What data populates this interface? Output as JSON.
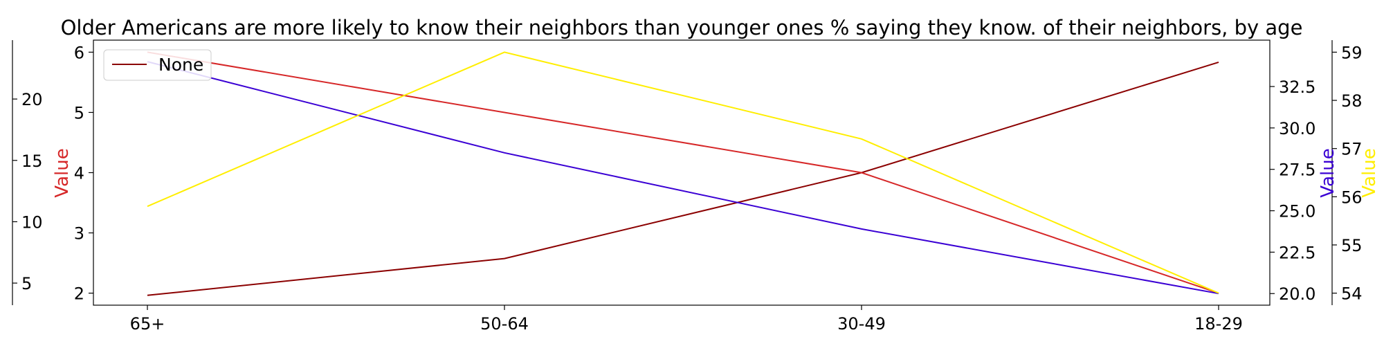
{
  "chart_data": {
    "type": "line",
    "title": "Older Americans are more likely to know their neighbors than younger ones % saying they know. of their neighbors, by age",
    "categories": [
      "65+",
      "50-64",
      "30-49",
      "18-29"
    ],
    "grid": false,
    "legend": {
      "placement": "top-left",
      "entries": [
        "None"
      ]
    },
    "axes": {
      "left": {
        "label": "Value",
        "color": "#d62728",
        "range": [
          1.8,
          6.2
        ],
        "ticks": [
          2,
          3,
          4,
          5,
          6
        ],
        "tick_labels": [
          "2",
          "3",
          "4",
          "5",
          "6"
        ]
      },
      "outer_left": {
        "label": "",
        "color": "#000000",
        "range": [
          3.2,
          24.8
        ],
        "ticks": [
          5,
          10,
          15,
          20
        ],
        "tick_labels": [
          "5",
          "10",
          "15",
          "20"
        ]
      },
      "right": {
        "label": "Value",
        "color": "#3a00d4",
        "range": [
          19.3,
          35.3
        ],
        "ticks": [
          20.0,
          22.5,
          25.0,
          27.5,
          30.0,
          32.5
        ],
        "tick_labels": [
          "20.0",
          "22.5",
          "25.0",
          "27.5",
          "30.0",
          "32.5"
        ]
      },
      "outer_right": {
        "label": "Value",
        "color": "#ffee00",
        "range": [
          53.75,
          59.25
        ],
        "ticks": [
          54,
          55,
          56,
          57,
          58,
          59
        ],
        "tick_labels": [
          "54",
          "55",
          "56",
          "57",
          "58",
          "59"
        ]
      }
    },
    "series": [
      {
        "name": "None",
        "color": "#8b0000",
        "axis": "outer_left",
        "values": [
          4,
          7,
          14,
          23
        ]
      },
      {
        "color": "#d62728",
        "axis": "left",
        "values": [
          6,
          5,
          4,
          2
        ]
      },
      {
        "color": "#3a00d4",
        "axis": "right",
        "values": [
          34,
          28.5,
          23.9,
          20
        ]
      },
      {
        "color": "#ffee00",
        "axis": "outer_right",
        "values": [
          55.8,
          59,
          57.2,
          54
        ]
      }
    ]
  }
}
